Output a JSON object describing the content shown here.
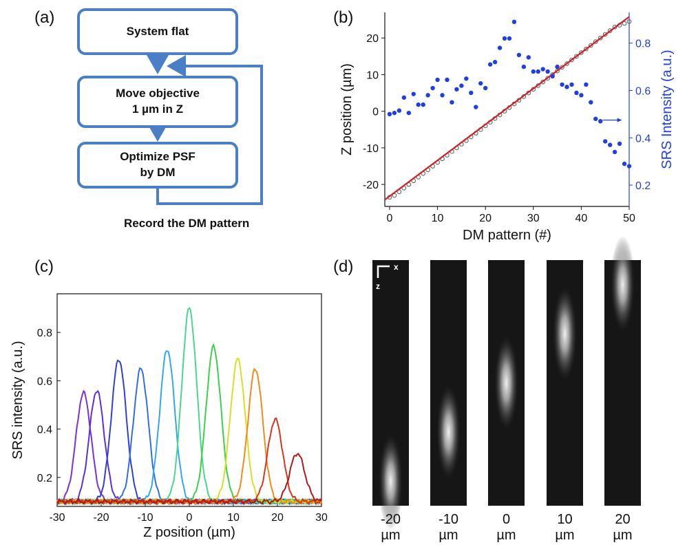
{
  "panels": {
    "a": "(a)",
    "b": "(b)",
    "c": "(c)",
    "d": "(d)"
  },
  "flowchart": {
    "box1": "System flat",
    "box2_line1": "Move objective",
    "box2_line2": "1 µm in Z",
    "box3_line1": "Optimize PSF",
    "box3_line2": "by DM",
    "caption": "Record the DM pattern",
    "color": "#4a7fc8"
  },
  "psf": {
    "scale_x": "x",
    "scale_z": "z",
    "columns": [
      {
        "value": "-20",
        "unit": "µm",
        "center": -20
      },
      {
        "value": "-10",
        "unit": "µm",
        "center": -10
      },
      {
        "value": "0",
        "unit": "µm",
        "center": 0
      },
      {
        "value": "10",
        "unit": "µm",
        "center": 10
      },
      {
        "value": "20",
        "unit": "µm",
        "center": 20
      }
    ]
  },
  "chart_data": [
    {
      "type": "scatter",
      "panel": "b",
      "xlabel": "DM pattern (#)",
      "ylabel": "Z position (µm)",
      "y2label": "SRS Intensity (a.u.)",
      "xlim": [
        -1,
        50
      ],
      "ylim": [
        -26,
        27
      ],
      "y2lim": [
        0.11,
        0.93
      ],
      "xticks": [
        0,
        10,
        20,
        30,
        40,
        50
      ],
      "yticks": [
        -20,
        -10,
        0,
        10,
        20
      ],
      "y2ticks": [
        0.2,
        0.4,
        0.6,
        0.8
      ],
      "fit_line": {
        "color": "#cc2222",
        "x": [
          -1,
          50
        ],
        "y": [
          -24.2,
          25.8
        ]
      },
      "z_position": {
        "marker": "open-circle",
        "color": "#666666",
        "x": [
          0,
          1,
          2,
          3,
          4,
          5,
          6,
          7,
          8,
          9,
          10,
          11,
          12,
          13,
          14,
          15,
          16,
          17,
          18,
          19,
          20,
          21,
          22,
          23,
          24,
          25,
          26,
          27,
          28,
          29,
          30,
          31,
          32,
          33,
          34,
          35,
          36,
          37,
          38,
          39,
          40,
          41,
          42,
          43,
          44,
          45,
          46,
          47,
          48,
          49,
          50
        ],
        "y": [
          -23.5,
          -23,
          -22,
          -21,
          -20,
          -19,
          -18,
          -17,
          -16,
          -15,
          -14,
          -13,
          -12,
          -11,
          -10,
          -9,
          -8,
          -7,
          -6,
          -5,
          -4,
          -3,
          -2,
          -1,
          0,
          1,
          2,
          3,
          4,
          5,
          6,
          7,
          8,
          9,
          10,
          11,
          12,
          13,
          14,
          15,
          16,
          17,
          18,
          19,
          20,
          21,
          22,
          23,
          23.5,
          24,
          24.5
        ]
      },
      "srs_intensity": {
        "marker": "filled-circle",
        "color": "#1f3fe0",
        "axis": "right",
        "x": [
          0,
          1,
          2,
          3,
          4,
          5,
          6,
          7,
          8,
          9,
          10,
          11,
          12,
          13,
          14,
          15,
          16,
          17,
          18,
          19,
          20,
          21,
          22,
          23,
          24,
          25,
          26,
          27,
          28,
          29,
          30,
          31,
          32,
          33,
          34,
          35,
          36,
          37,
          38,
          39,
          40,
          41,
          42,
          43,
          44,
          45,
          46,
          47,
          48,
          49,
          50
        ],
        "y": [
          0.5,
          0.505,
          0.515,
          0.57,
          0.505,
          0.585,
          0.54,
          0.54,
          0.58,
          0.61,
          0.645,
          0.58,
          0.645,
          0.55,
          0.605,
          0.62,
          0.65,
          0.59,
          0.53,
          0.63,
          0.61,
          0.71,
          0.72,
          0.78,
          0.82,
          0.82,
          0.89,
          0.75,
          0.7,
          0.74,
          0.68,
          0.68,
          0.69,
          0.68,
          0.66,
          0.7,
          0.625,
          0.615,
          0.625,
          0.59,
          0.58,
          0.625,
          0.55,
          0.48,
          0.47,
          0.385,
          0.37,
          0.34,
          0.375,
          0.29,
          0.28
        ]
      },
      "arrow": {
        "color": "#1f3fe0",
        "direction": "right"
      }
    },
    {
      "type": "line",
      "panel": "c",
      "xlabel": "Z position (µm)",
      "ylabel": "SRS intensity (a.u.)",
      "xlim": [
        -30,
        30
      ],
      "ylim": [
        0.08,
        0.96
      ],
      "xticks": [
        -30,
        -20,
        -10,
        0,
        10,
        20,
        30
      ],
      "yticks": [
        0.2,
        0.4,
        0.6,
        0.8
      ],
      "baseline": 0.1,
      "series": [
        {
          "center": -24,
          "peak": 0.55,
          "color": "#7b2fd9"
        },
        {
          "center": -21,
          "peak": 0.56,
          "color": "#5a2ee0"
        },
        {
          "center": -16,
          "peak": 0.69,
          "color": "#2f3ddc"
        },
        {
          "center": -11,
          "peak": 0.65,
          "color": "#2f6ee8"
        },
        {
          "center": -5,
          "peak": 0.73,
          "color": "#2fa8ee"
        },
        {
          "center": 0,
          "peak": 0.9,
          "color": "#47d88c"
        },
        {
          "center": 5.5,
          "peak": 0.74,
          "color": "#3ad14a"
        },
        {
          "center": 11,
          "peak": 0.69,
          "color": "#d6e022"
        },
        {
          "center": 15,
          "peak": 0.65,
          "color": "#f08a1a"
        },
        {
          "center": 19.5,
          "peak": 0.44,
          "color": "#d8351a"
        },
        {
          "center": 24.5,
          "peak": 0.3,
          "color": "#b01818"
        }
      ]
    }
  ]
}
